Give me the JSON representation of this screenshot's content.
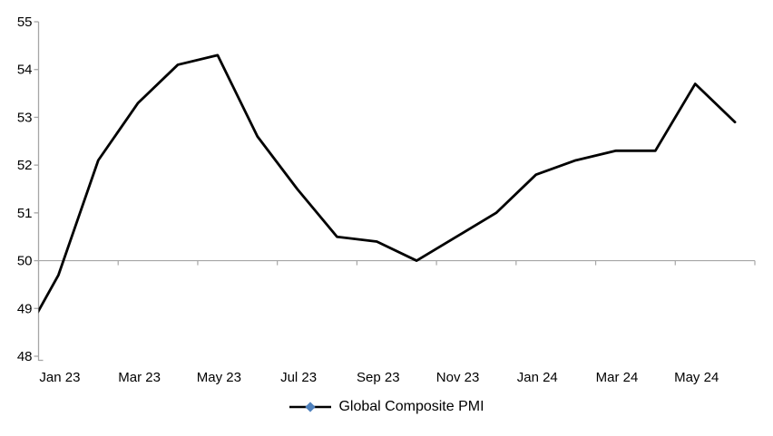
{
  "chart_data": {
    "type": "line",
    "title": "",
    "xlabel": "",
    "ylabel": "",
    "series": [
      {
        "name": "Global Composite PMI",
        "categories": [
          "Dec 22",
          "Jan 23",
          "Feb 23",
          "Mar 23",
          "Apr 23",
          "May 23",
          "Jun 23",
          "Jul 23",
          "Aug 23",
          "Sep 23",
          "Oct 23",
          "Nov 23",
          "Dec 23",
          "Jan 24",
          "Feb 24",
          "Mar 24",
          "Apr 24",
          "May 24",
          "Jun 24"
        ],
        "values": [
          48.2,
          49.7,
          52.1,
          53.3,
          54.1,
          54.3,
          52.6,
          51.5,
          50.5,
          50.4,
          50.0,
          50.5,
          51.0,
          51.8,
          52.1,
          52.3,
          52.3,
          53.7,
          52.9
        ]
      }
    ],
    "x_tick_labels": [
      "Jan 23",
      "Mar 23",
      "May 23",
      "Jul 23",
      "Sep 23",
      "Nov 23",
      "Jan 24",
      "Mar 24",
      "May 24"
    ],
    "y_tick_labels": [
      "48",
      "49",
      "50",
      "51",
      "52",
      "53",
      "54",
      "55"
    ],
    "ylim": [
      48,
      55
    ],
    "y_tick_step": 1,
    "x_tick_interval_categories": 2,
    "axis_cross_value": 50,
    "first_point_clipped_at_left_edge": true,
    "grid": "single horizontal line at 50 only",
    "legend": {
      "label": "Global Composite PMI",
      "position": "bottom-center"
    },
    "colors": {
      "line": "#000000",
      "marker": "#4F81BD",
      "axis": "#A6A6A6",
      "text": "#000000",
      "background": "#FFFFFF"
    }
  }
}
